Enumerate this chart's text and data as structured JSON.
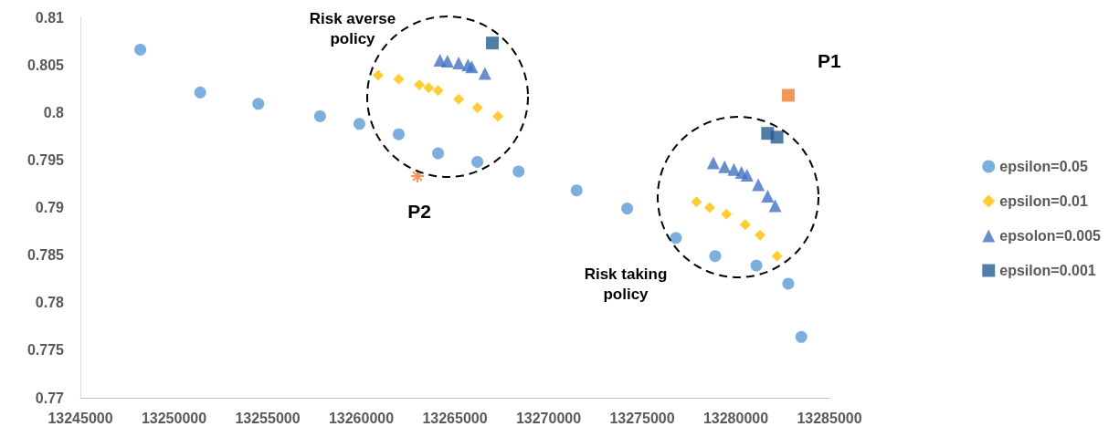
{
  "chart_data": {
    "type": "scatter",
    "xlim": [
      13245000,
      13285000
    ],
    "xticks": [
      13245000,
      13250000,
      13255000,
      13260000,
      13265000,
      13270000,
      13275000,
      13280000,
      13285000
    ],
    "ylim": [
      0.77,
      0.81
    ],
    "yticks": [
      0.77,
      0.775,
      0.78,
      0.785,
      0.79,
      0.795,
      0.8,
      0.805,
      0.81
    ],
    "grid": false,
    "legend": "right",
    "series": [
      {
        "name": "epsilon=0.05",
        "color": "#5b9bd5",
        "marker": "circle",
        "x": [
          13248200,
          13251400,
          13254500,
          13257800,
          13259900,
          13262000,
          13264100,
          13266200,
          13268400,
          13271500,
          13274200,
          13276800,
          13278900,
          13281100,
          13282800,
          13283500
        ],
        "values": [
          0.8066,
          0.8021,
          0.8009,
          0.7996,
          0.7988,
          0.7977,
          0.7957,
          0.7948,
          0.7938,
          0.7918,
          0.7899,
          0.7868,
          0.7849,
          0.7839,
          0.782,
          0.7764
        ]
      },
      {
        "name": "epsilon=0.01",
        "color": "#ffc000",
        "marker": "diamond",
        "x": [
          13260900,
          13262000,
          13263100,
          13263600,
          13264100,
          13265200,
          13266200,
          13267300,
          13277900,
          13278600,
          13279500,
          13280500,
          13281300,
          13282200
        ],
        "values": [
          0.8039,
          0.8035,
          0.8029,
          0.8026,
          0.8023,
          0.8014,
          0.8005,
          0.7996,
          0.7906,
          0.79,
          0.7893,
          0.7882,
          0.7871,
          0.7849
        ]
      },
      {
        "name": "epsolon=0.005",
        "color": "#4472c4",
        "marker": "triangle",
        "x": [
          13264200,
          13264600,
          13265200,
          13265700,
          13265900,
          13266600,
          13278800,
          13279400,
          13279900,
          13280300,
          13280600,
          13281200,
          13281700,
          13282100
        ],
        "values": [
          0.8055,
          0.8054,
          0.8052,
          0.805,
          0.8048,
          0.8041,
          0.7947,
          0.7943,
          0.794,
          0.7937,
          0.7934,
          0.7924,
          0.7912,
          0.7902
        ]
      },
      {
        "name": "epsilon=0.001",
        "color": "#255e91",
        "marker": "square",
        "x": [
          13267000,
          13281700,
          13282200
        ],
        "values": [
          0.8073,
          0.7978,
          0.7974
        ]
      },
      {
        "color": "#ed7d31",
        "marker": "square",
        "x": [
          13282800
        ],
        "values": [
          0.8018
        ]
      },
      {
        "color": "#ed7d31",
        "marker": "cross",
        "x": [
          13263000
        ],
        "values": [
          0.7933
        ]
      }
    ],
    "annotations": [
      "Risk averse policy",
      "Risk taking policy",
      {
        "text": "P1",
        "x": 13282800,
        "y": 0.8018
      },
      {
        "text": "P2",
        "x": 13263000,
        "y": 0.7933
      }
    ]
  }
}
